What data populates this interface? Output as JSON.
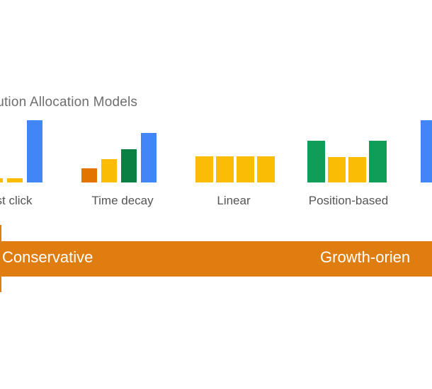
{
  "title": "ibution Allocation Models",
  "colors": {
    "blue": "#4285f4",
    "yellow": "#fbbc05",
    "green": "#0f9d58",
    "dark_green": "#0b8043",
    "orange": "#e37400",
    "arrow": "#e07d10"
  },
  "models": [
    {
      "label": "st click",
      "bars": [
        {
          "value": 0.07,
          "color": "yellow"
        },
        {
          "value": 0.07,
          "color": "yellow"
        },
        {
          "value": 1.0,
          "color": "blue"
        }
      ]
    },
    {
      "label": "Time decay",
      "bars": [
        {
          "value": 0.23,
          "color": "orange"
        },
        {
          "value": 0.37,
          "color": "yellow"
        },
        {
          "value": 0.53,
          "color": "dark_green"
        },
        {
          "value": 0.8,
          "color": "blue"
        }
      ]
    },
    {
      "label": "Linear",
      "bars": [
        {
          "value": 0.42,
          "color": "yellow"
        },
        {
          "value": 0.42,
          "color": "yellow"
        },
        {
          "value": 0.42,
          "color": "yellow"
        },
        {
          "value": 0.42,
          "color": "yellow"
        }
      ]
    },
    {
      "label": "Position-based",
      "bars": [
        {
          "value": 0.67,
          "color": "green"
        },
        {
          "value": 0.41,
          "color": "yellow"
        },
        {
          "value": 0.41,
          "color": "yellow"
        },
        {
          "value": 0.67,
          "color": "green"
        }
      ]
    },
    {
      "label": "",
      "bars": [
        {
          "value": 1.0,
          "color": "blue"
        }
      ]
    }
  ],
  "spectrum": {
    "left_label": "Conservative",
    "right_label": "Growth-orien"
  }
}
